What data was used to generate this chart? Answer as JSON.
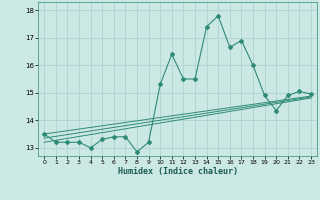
{
  "xlabel": "Humidex (Indice chaleur)",
  "x_values": [
    0,
    1,
    2,
    3,
    4,
    5,
    6,
    7,
    8,
    9,
    10,
    11,
    12,
    13,
    14,
    15,
    16,
    17,
    18,
    19,
    20,
    21,
    22,
    23
  ],
  "main_line": [
    13.5,
    13.2,
    13.2,
    13.2,
    13.0,
    13.3,
    13.4,
    13.4,
    12.85,
    13.2,
    15.3,
    16.4,
    15.5,
    15.5,
    17.4,
    17.8,
    16.65,
    16.9,
    16.0,
    14.9,
    14.35,
    14.9,
    15.05,
    14.95
  ],
  "reg_line1": [
    13.5,
    13.56,
    13.62,
    13.68,
    13.74,
    13.8,
    13.86,
    13.92,
    13.98,
    14.04,
    14.1,
    14.16,
    14.22,
    14.28,
    14.34,
    14.4,
    14.46,
    14.52,
    14.58,
    14.64,
    14.7,
    14.76,
    14.82,
    14.88
  ],
  "reg_line2": [
    13.35,
    13.415,
    13.48,
    13.545,
    13.61,
    13.675,
    13.74,
    13.805,
    13.87,
    13.935,
    14.0,
    14.065,
    14.13,
    14.195,
    14.26,
    14.325,
    14.39,
    14.455,
    14.52,
    14.585,
    14.65,
    14.715,
    14.78,
    14.845
  ],
  "reg_line3": [
    13.2,
    13.27,
    13.34,
    13.41,
    13.48,
    13.55,
    13.62,
    13.69,
    13.76,
    13.83,
    13.9,
    13.97,
    14.04,
    14.11,
    14.18,
    14.25,
    14.32,
    14.39,
    14.46,
    14.53,
    14.6,
    14.67,
    14.74,
    14.81
  ],
  "line_color": "#2e8b74",
  "bg_color": "#cce8e5",
  "grid_color": "#aed4d0",
  "ylim": [
    12.7,
    18.3
  ],
  "yticks": [
    13,
    14,
    15,
    16,
    17,
    18
  ],
  "xlim": [
    -0.5,
    23.5
  ]
}
